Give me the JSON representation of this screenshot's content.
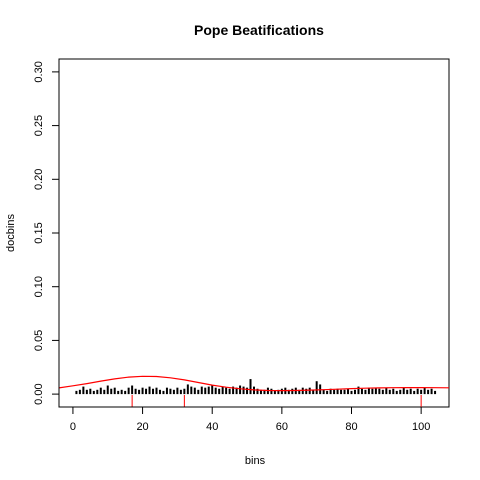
{
  "chart_data": {
    "type": "bar",
    "title": "Pope Beatifications",
    "xlabel": "bins",
    "ylabel": "docbins",
    "xlim": [
      -4,
      108
    ],
    "ylim": [
      -0.012,
      0.312
    ],
    "x_ticks": [
      0,
      20,
      40,
      60,
      80,
      100
    ],
    "y_ticks": [
      0.0,
      0.05,
      0.1,
      0.15,
      0.2,
      0.25,
      0.3
    ],
    "y_tick_labels": [
      "0.00",
      "0.05",
      "0.10",
      "0.15",
      "0.20",
      "0.25",
      "0.30"
    ],
    "bar_color": "#000000",
    "curve_color": "#ff0000",
    "bins": [
      1,
      2,
      3,
      4,
      5,
      6,
      7,
      8,
      9,
      10,
      11,
      12,
      13,
      14,
      15,
      16,
      17,
      18,
      19,
      20,
      21,
      22,
      23,
      24,
      25,
      26,
      27,
      28,
      29,
      30,
      31,
      32,
      33,
      34,
      35,
      36,
      37,
      38,
      39,
      40,
      41,
      42,
      43,
      44,
      45,
      46,
      47,
      48,
      49,
      50,
      51,
      52,
      53,
      54,
      55,
      56,
      57,
      58,
      59,
      60,
      61,
      62,
      63,
      64,
      65,
      66,
      67,
      68,
      69,
      70,
      71,
      72,
      73,
      74,
      75,
      76,
      77,
      78,
      79,
      80,
      81,
      82,
      83,
      84,
      85,
      86,
      87,
      88,
      89,
      90,
      91,
      92,
      93,
      94,
      95,
      96,
      97,
      98,
      99,
      100,
      101,
      102,
      103,
      104
    ],
    "docbins": [
      0.003,
      0.004,
      0.007,
      0.004,
      0.005,
      0.003,
      0.004,
      0.006,
      0.004,
      0.008,
      0.005,
      0.006,
      0.003,
      0.004,
      0.003,
      0.006,
      0.008,
      0.005,
      0.004,
      0.006,
      0.005,
      0.007,
      0.005,
      0.006,
      0.004,
      0.003,
      0.006,
      0.005,
      0.004,
      0.006,
      0.004,
      0.005,
      0.009,
      0.007,
      0.006,
      0.004,
      0.007,
      0.006,
      0.007,
      0.008,
      0.006,
      0.005,
      0.007,
      0.006,
      0.005,
      0.007,
      0.006,
      0.008,
      0.007,
      0.006,
      0.014,
      0.007,
      0.005,
      0.004,
      0.004,
      0.006,
      0.005,
      0.003,
      0.004,
      0.005,
      0.006,
      0.004,
      0.005,
      0.006,
      0.004,
      0.006,
      0.005,
      0.006,
      0.004,
      0.012,
      0.009,
      0.004,
      0.003,
      0.005,
      0.004,
      0.005,
      0.004,
      0.004,
      0.005,
      0.003,
      0.004,
      0.007,
      0.005,
      0.004,
      0.006,
      0.005,
      0.006,
      0.005,
      0.004,
      0.006,
      0.004,
      0.005,
      0.003,
      0.004,
      0.006,
      0.004,
      0.005,
      0.003,
      0.005,
      0.004,
      0.006,
      0.004,
      0.005,
      0.003
    ],
    "density_curve": {
      "x": [
        -4,
        0,
        4,
        8,
        12,
        16,
        20,
        24,
        28,
        32,
        36,
        40,
        44,
        48,
        52,
        56,
        60,
        64,
        68,
        72,
        76,
        80,
        84,
        88,
        92,
        96,
        100,
        104,
        108
      ],
      "y": [
        0.0058,
        0.0077,
        0.0098,
        0.0121,
        0.0142,
        0.0158,
        0.0166,
        0.0164,
        0.0152,
        0.0132,
        0.0108,
        0.0084,
        0.0064,
        0.0049,
        0.0039,
        0.0034,
        0.0033,
        0.0034,
        0.0037,
        0.0041,
        0.0046,
        0.0051,
        0.0055,
        0.0058,
        0.006,
        0.0061,
        0.0061,
        0.006,
        0.0059
      ]
    },
    "rug_x": [
      17,
      32,
      100
    ],
    "grid": false
  }
}
